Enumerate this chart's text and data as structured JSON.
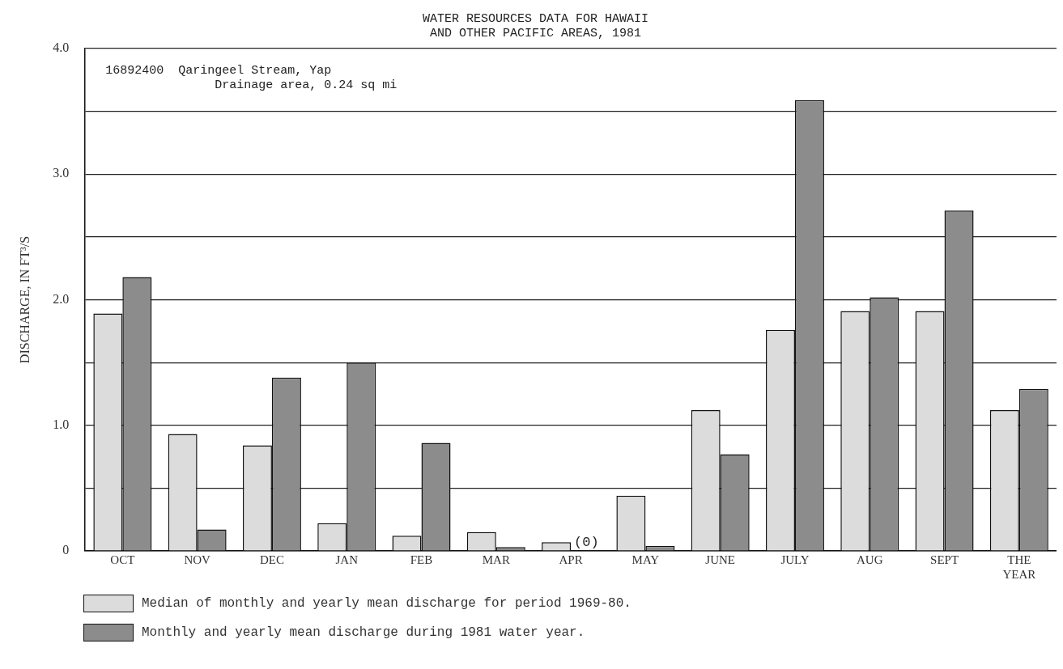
{
  "chart_data": {
    "type": "bar",
    "title": "WATER RESOURCES DATA FOR HAWAII",
    "subtitle": "AND OTHER PACIFIC AREAS, 1981",
    "ylabel": "DISCHARGE, IN FT³/S",
    "categories": [
      "OCT",
      "NOV",
      "DEC",
      "JAN",
      "FEB",
      "MAR",
      "APR",
      "MAY",
      "JUNE",
      "JULY",
      "AUG",
      "SEPT",
      "THE YEAR"
    ],
    "series": [
      {
        "name": "Median of monthly and yearly mean discharge for period 1969-80.",
        "color": "#dcdcdc",
        "values": [
          1.89,
          0.93,
          0.84,
          0.22,
          0.12,
          0.15,
          0.07,
          0.44,
          1.12,
          1.76,
          1.91,
          1.91,
          1.12
        ]
      },
      {
        "name": "Monthly and yearly mean discharge during 1981 water year.",
        "color": "#8c8c8c",
        "values": [
          2.18,
          0.17,
          1.38,
          1.5,
          0.86,
          0.03,
          0,
          0.04,
          0.77,
          3.59,
          2.02,
          2.71,
          1.29
        ]
      }
    ],
    "ylim": [
      0,
      4
    ],
    "yticks": [
      0,
      {
        "value": 0.5,
        "label": null
      },
      {
        "value": 1,
        "label": "1.0"
      },
      {
        "value": 1.5,
        "label": null
      },
      {
        "value": 2,
        "label": "2.0"
      },
      {
        "value": 2.5,
        "label": null
      },
      {
        "value": 3,
        "label": "3.0"
      },
      {
        "value": 3.5,
        "label": null
      },
      {
        "value": 4,
        "label": "4.0"
      }
    ],
    "grid": "y",
    "legend": "bottom",
    "annotations": [
      "16892400  Qaringeel Stream, Yap",
      "Drainage area, 0.24 sq mi",
      {
        "text": "(0)",
        "x": "APR",
        "y": 0
      }
    ]
  }
}
